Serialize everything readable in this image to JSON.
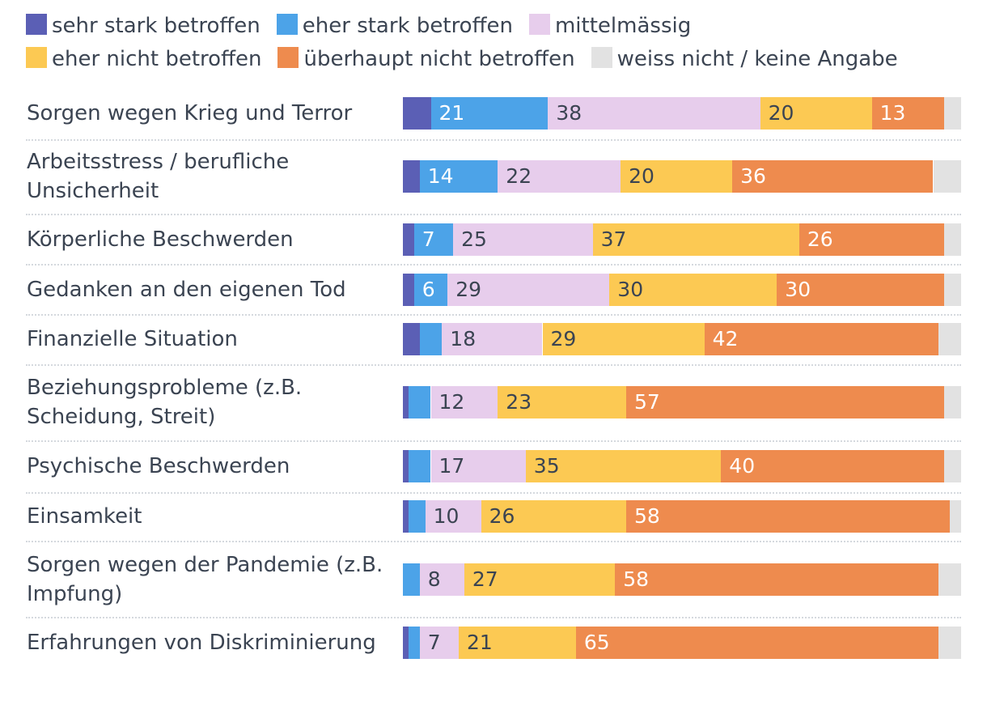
{
  "chart_data": {
    "type": "bar",
    "orientation": "horizontal",
    "stacked": true,
    "title": "",
    "legend_position": "top",
    "series": [
      {
        "name": "sehr stark betroffen",
        "color": "#5b5fb5",
        "values": [
          5,
          3,
          2,
          2,
          3,
          1,
          1,
          1,
          0,
          1
        ]
      },
      {
        "name": "eher stark betroffen",
        "color": "#4ca3e8",
        "values": [
          21,
          14,
          7,
          6,
          4,
          4,
          4,
          3,
          3,
          2
        ]
      },
      {
        "name": "mittelmässig",
        "color": "#e7cdec",
        "values": [
          38,
          22,
          25,
          29,
          18,
          12,
          17,
          10,
          8,
          7
        ]
      },
      {
        "name": "eher nicht betroffen",
        "color": "#fcc953",
        "values": [
          20,
          20,
          37,
          30,
          29,
          23,
          35,
          26,
          27,
          21
        ]
      },
      {
        "name": "überhaupt nicht betroffen",
        "color": "#ee8b4e",
        "values": [
          13,
          36,
          26,
          30,
          42,
          57,
          40,
          58,
          58,
          65
        ]
      },
      {
        "name": "weiss nicht / keine Angabe",
        "color": "#e2e2e2",
        "values": [
          3,
          5,
          3,
          3,
          4,
          3,
          3,
          2,
          4,
          4
        ]
      }
    ],
    "label_threshold": 6,
    "categories": [
      "Sorgen wegen Krieg und Terror",
      "Arbeitsstress / berufliche Unsicherheit",
      "Körperliche Beschwerden",
      "Gedanken an den eigenen Tod",
      "Finanzielle Situation",
      "Beziehungsprobleme (z.B. Scheidung, Streit)",
      "Psychische Beschwerden",
      "Einsamkeit",
      "Sorgen wegen der Pandemie (z.B. Impfung)",
      "Erfahrungen von Diskriminierung"
    ],
    "xlim": [
      0,
      100
    ]
  }
}
